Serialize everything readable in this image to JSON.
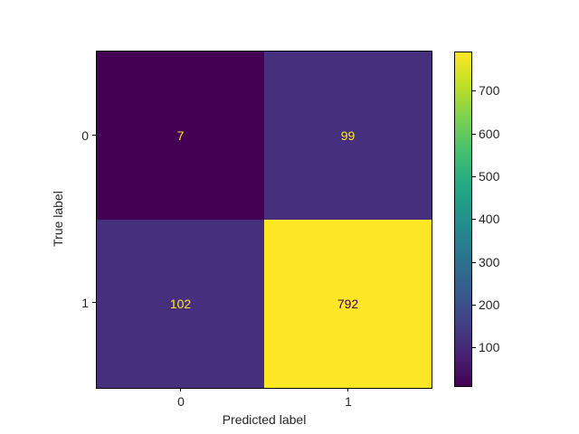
{
  "figure": {
    "background": "#ffffff"
  },
  "chart_data": {
    "type": "heatmap",
    "title": "",
    "xlabel": "Predicted label",
    "ylabel": "True label",
    "x_tick_labels": [
      "0",
      "1"
    ],
    "y_tick_labels": [
      "0",
      "1"
    ],
    "matrix": [
      [
        7,
        99
      ],
      [
        102,
        792
      ]
    ],
    "vmin": 7,
    "vmax": 792,
    "colormap": "viridis",
    "colormap_stops": [
      "#440154",
      "#482475",
      "#414487",
      "#355f8d",
      "#2a788e",
      "#21918c",
      "#22a884",
      "#44bf70",
      "#7ad151",
      "#bddf26",
      "#fde725"
    ],
    "cell_colors": [
      [
        "#440154",
        "#46307e"
      ],
      [
        "#46307e",
        "#fde725"
      ]
    ],
    "cell_text_colors": [
      [
        "#fde725",
        "#fde725"
      ],
      [
        "#fde725",
        "#440154"
      ]
    ],
    "colorbar_ticks": [
      100,
      200,
      300,
      400,
      500,
      600,
      700
    ],
    "legend_position": "right-colorbar",
    "grid": false
  }
}
